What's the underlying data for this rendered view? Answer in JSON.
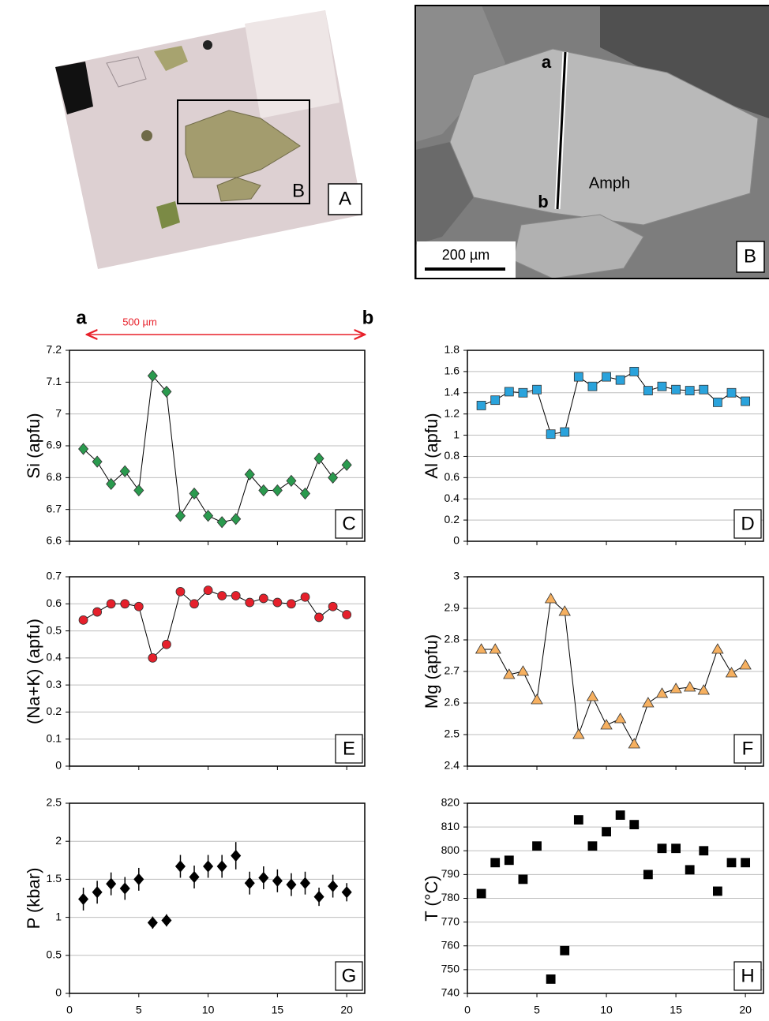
{
  "panels": {
    "A": {
      "label": "A",
      "inset_label": "B"
    },
    "B": {
      "label": "B",
      "mineral": "Amph",
      "point_a": "a",
      "point_b": "b",
      "scale_bar": "200 µm"
    }
  },
  "profile": {
    "start": "a",
    "end": "b",
    "length": "500 µm"
  },
  "chart_data": [
    {
      "type": "line",
      "ylabel": "Si (apfu)",
      "panel_label": "C",
      "color": "#2a9a4e",
      "marker": "diamond",
      "x": [
        1,
        2,
        3,
        4,
        5,
        6,
        7,
        8,
        9,
        10,
        11,
        12,
        13,
        14,
        15,
        16,
        17,
        18,
        19,
        20
      ],
      "values": [
        6.89,
        6.85,
        6.78,
        6.82,
        6.76,
        7.12,
        7.07,
        6.68,
        6.75,
        6.68,
        6.66,
        6.67,
        6.81,
        6.76,
        6.76,
        6.79,
        6.75,
        6.86,
        6.8,
        6.84
      ],
      "xlim": [
        0,
        21.3
      ],
      "xticks": [
        0,
        5,
        10,
        15,
        20
      ],
      "xtick_labels": false,
      "ylim": [
        6.6,
        7.2
      ],
      "yticks": [
        6.6,
        6.7,
        6.8,
        6.9,
        7,
        7.1,
        7.2
      ],
      "grid": true
    },
    {
      "type": "line",
      "ylabel": "Al (apfu)",
      "panel_label": "D",
      "color": "#2aa3dc",
      "marker": "square",
      "x": [
        1,
        2,
        3,
        4,
        5,
        6,
        7,
        8,
        9,
        10,
        11,
        12,
        13,
        14,
        15,
        16,
        17,
        18,
        19,
        20
      ],
      "values": [
        1.28,
        1.33,
        1.41,
        1.4,
        1.43,
        1.01,
        1.03,
        1.55,
        1.46,
        1.55,
        1.52,
        1.6,
        1.42,
        1.46,
        1.43,
        1.42,
        1.43,
        1.31,
        1.4,
        1.32
      ],
      "xlim": [
        0,
        21.3
      ],
      "xticks": [
        0,
        5,
        10,
        15,
        20
      ],
      "xtick_labels": false,
      "ylim": [
        0,
        1.8
      ],
      "yticks": [
        0,
        0.2,
        0.4,
        0.6,
        0.8,
        1,
        1.2,
        1.4,
        1.6,
        1.8
      ],
      "grid": true
    },
    {
      "type": "line",
      "ylabel": "(Na+K) (apfu)",
      "panel_label": "E",
      "color": "#e5202b",
      "marker": "circle",
      "x": [
        1,
        2,
        3,
        4,
        5,
        6,
        7,
        8,
        9,
        10,
        11,
        12,
        13,
        14,
        15,
        16,
        17,
        18,
        19,
        20
      ],
      "values": [
        0.54,
        0.57,
        0.6,
        0.6,
        0.59,
        0.4,
        0.45,
        0.645,
        0.6,
        0.65,
        0.63,
        0.63,
        0.605,
        0.62,
        0.605,
        0.6,
        0.625,
        0.55,
        0.59,
        0.56
      ],
      "xlim": [
        0,
        21.3
      ],
      "xticks": [
        0,
        5,
        10,
        15,
        20
      ],
      "xtick_labels": false,
      "ylim": [
        0,
        0.7
      ],
      "yticks": [
        0,
        0.1,
        0.2,
        0.3,
        0.4,
        0.5,
        0.6,
        0.7
      ],
      "grid": true
    },
    {
      "type": "line",
      "ylabel": "Mg (apfu)",
      "panel_label": "F",
      "color": "#f6b060",
      "marker": "triangle",
      "x": [
        1,
        2,
        3,
        4,
        5,
        6,
        7,
        8,
        9,
        10,
        11,
        12,
        13,
        14,
        15,
        16,
        17,
        18,
        19,
        20
      ],
      "values": [
        2.77,
        2.77,
        2.69,
        2.7,
        2.61,
        2.93,
        2.89,
        2.5,
        2.62,
        2.53,
        2.55,
        2.47,
        2.6,
        2.63,
        2.645,
        2.65,
        2.64,
        2.77,
        2.695,
        2.72
      ],
      "xlim": [
        0,
        21.3
      ],
      "xticks": [
        0,
        5,
        10,
        15,
        20
      ],
      "xtick_labels": false,
      "ylim": [
        2.4,
        3
      ],
      "yticks": [
        2.4,
        2.5,
        2.6,
        2.7,
        2.8,
        2.9,
        3
      ],
      "grid": true
    },
    {
      "type": "errorbar",
      "ylabel": "P (kbar)",
      "panel_label": "G",
      "color": "#000000",
      "marker": "diamond",
      "x": [
        1,
        2,
        3,
        4,
        5,
        6,
        7,
        8,
        9,
        10,
        11,
        12,
        13,
        14,
        15,
        16,
        17,
        18,
        19,
        20
      ],
      "values": [
        1.24,
        1.33,
        1.44,
        1.38,
        1.5,
        0.93,
        0.96,
        1.67,
        1.53,
        1.67,
        1.67,
        1.81,
        1.45,
        1.52,
        1.48,
        1.43,
        1.45,
        1.27,
        1.41,
        1.33
      ],
      "errors": [
        0.15,
        0.15,
        0.15,
        0.15,
        0.15,
        0.08,
        0.08,
        0.15,
        0.15,
        0.15,
        0.15,
        0.18,
        0.15,
        0.15,
        0.15,
        0.15,
        0.15,
        0.12,
        0.15,
        0.12
      ],
      "xlim": [
        0,
        21.3
      ],
      "xticks": [
        0,
        5,
        10,
        15,
        20
      ],
      "xtick_labels": true,
      "ylim": [
        0,
        2.5
      ],
      "yticks": [
        0,
        0.5,
        1,
        1.5,
        2,
        2.5
      ],
      "grid": true
    },
    {
      "type": "scatter",
      "ylabel": "T (°C)",
      "panel_label": "H",
      "color": "#000000",
      "marker": "square",
      "x": [
        1,
        2,
        3,
        4,
        5,
        6,
        7,
        8,
        9,
        10,
        11,
        12,
        13,
        14,
        15,
        16,
        17,
        18,
        19,
        20
      ],
      "values": [
        782,
        795,
        796,
        788,
        802,
        746,
        758,
        813,
        802,
        808,
        815,
        811,
        790,
        801,
        801,
        792,
        800,
        783,
        795,
        795
      ],
      "xlim": [
        0,
        21.3
      ],
      "xticks": [
        0,
        5,
        10,
        15,
        20
      ],
      "xtick_labels": true,
      "ylim": [
        740,
        820
      ],
      "yticks": [
        740,
        750,
        760,
        770,
        780,
        790,
        800,
        810,
        820
      ],
      "grid": true
    }
  ]
}
